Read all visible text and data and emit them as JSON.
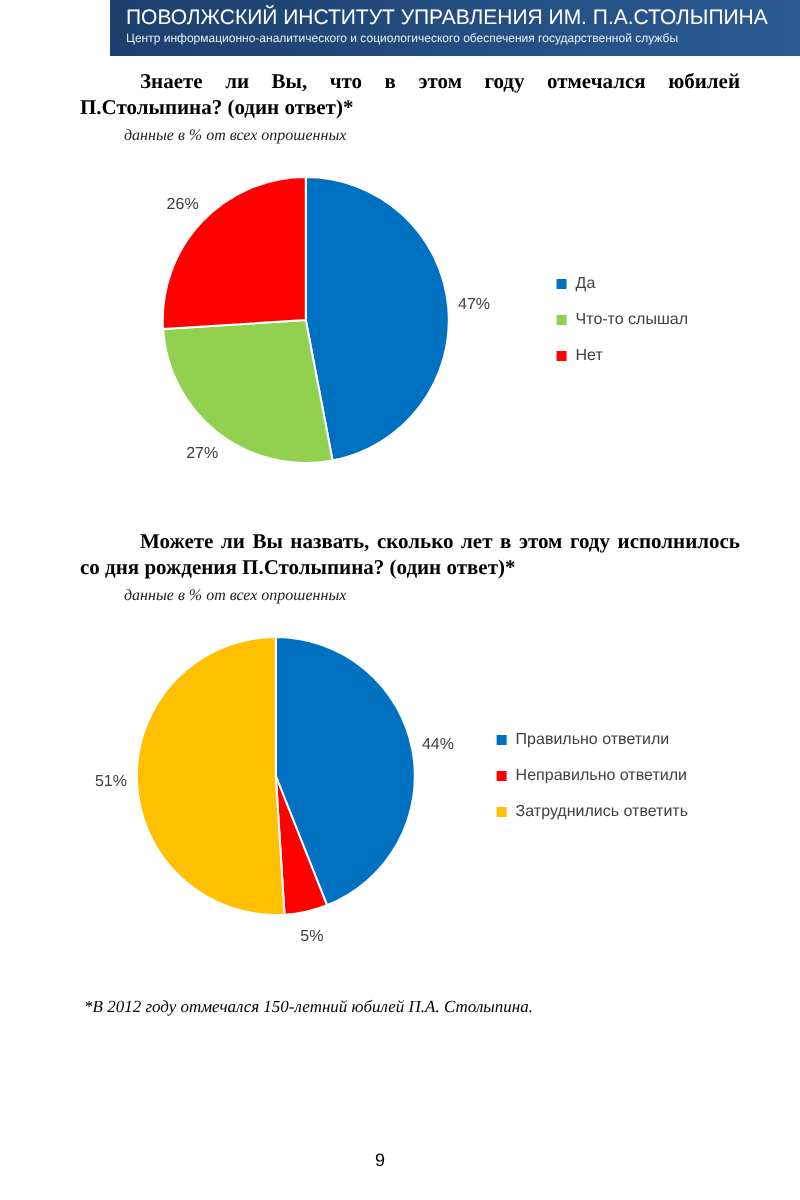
{
  "chart_data": [
    {
      "type": "pie",
      "title": "Знаете ли Вы, что в этом году отмечался юбилей П.Столыпина? (один ответ)*",
      "subtitle": "данные в % от всех опрошенных",
      "annotations": [
        "ПОВОЛЖСКИЙ ИНСТИТУТ УПРАВЛЕНИЯ ИМ. П.А.СТОЛЫПИНА",
        "Центр информационно-аналитического и социологического обеспечения государственной службы"
      ],
      "categories": [
        "Да",
        "Что-то слышал",
        "Нет"
      ],
      "values": [
        47,
        27,
        26
      ],
      "colors": [
        "#0070c0",
        "#92d050",
        "#ff0000"
      ],
      "value_labels": [
        "47%",
        "27%",
        "26%"
      ],
      "legend": "right"
    },
    {
      "type": "pie",
      "title": "Можете ли Вы назвать, сколько лет в этом году исполнилось со дня рождения П.Столыпина? (один ответ)*",
      "subtitle": "данные в % от всех опрошенных",
      "annotations": [
        "*В 2012 году отмечался 150-летний юбилей П.А. Столыпина.",
        "9"
      ],
      "categories": [
        "Правильно ответили",
        "Неправильно ответили",
        "Затруднились ответить"
      ],
      "values": [
        44,
        5,
        51
      ],
      "colors": [
        "#0070c0",
        "#ff0000",
        "#ffc000"
      ],
      "value_labels": [
        "44%",
        "5%",
        "51%"
      ],
      "legend": "right"
    }
  ]
}
